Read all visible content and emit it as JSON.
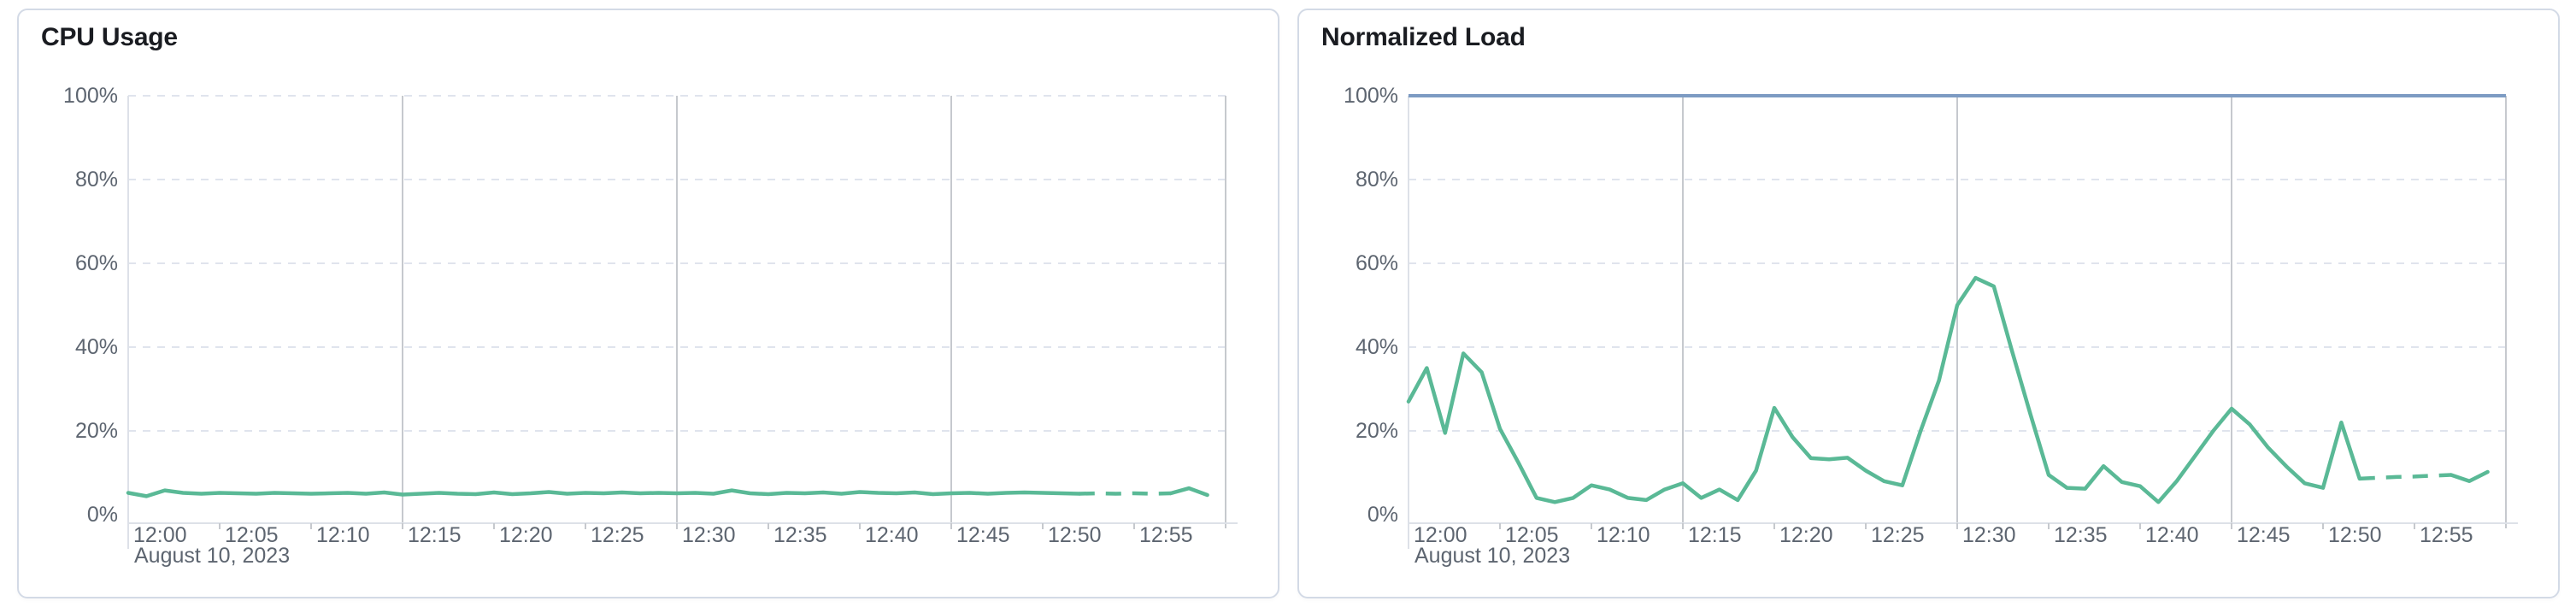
{
  "colors": {
    "series_green": "#5ab996",
    "limit_blue": "#7d9bc3",
    "h_gridline": "#e0e4ed",
    "v_gridline": "#c6c9ce",
    "axis_line": "#dde1e8",
    "tick_mark": "#c6c9ce",
    "axis_label": "#5d6570",
    "panel_border": "#d3dae6",
    "title_text": "#1a1c21"
  },
  "chart_data": [
    {
      "type": "line",
      "title": "CPU Usage",
      "date_label": "August 10, 2023",
      "x_tick_labels": [
        "12:00",
        "12:05",
        "12:10",
        "12:15",
        "12:20",
        "12:25",
        "12:30",
        "12:35",
        "12:40",
        "12:45",
        "12:50",
        "12:55"
      ],
      "x_domain": [
        "12:00",
        "13:00"
      ],
      "x_interval_minutes": 1,
      "y_tick_labels": [
        "0%",
        "20%",
        "40%",
        "60%",
        "80%",
        "100%"
      ],
      "ylim": [
        0,
        100
      ],
      "grid": {
        "horizontal": "dashed",
        "vertical_major_minutes": [
          15,
          30,
          45,
          60
        ],
        "legend": "none"
      },
      "series": [
        {
          "name": "cpu-usage",
          "color": "#5ab996",
          "unit": "%",
          "start_time": "12:00",
          "values": [
            5.2,
            4.4,
            5.8,
            5.2,
            5.0,
            5.2,
            5.1,
            5.0,
            5.2,
            5.1,
            5.0,
            5.1,
            5.2,
            5.0,
            5.3,
            4.8,
            5.0,
            5.2,
            5.0,
            4.9,
            5.3,
            4.9,
            5.1,
            5.4,
            5.0,
            5.2,
            5.1,
            5.3,
            5.1,
            5.2,
            5.1,
            5.2,
            5.0,
            5.8,
            5.1,
            4.9,
            5.2,
            5.1,
            5.3,
            5.0,
            5.4,
            5.2,
            5.1,
            5.3,
            4.9,
            5.1,
            5.2,
            5.0,
            5.2,
            5.3,
            5.2,
            5.1,
            5.0,
            5.1,
            5.0,
            5.1,
            5.0,
            5.1,
            6.3,
            4.7
          ],
          "dashed_segment": {
            "from_index": 52,
            "to_index": 57
          }
        }
      ]
    },
    {
      "type": "line",
      "title": "Normalized Load",
      "date_label": "August 10, 2023",
      "x_tick_labels": [
        "12:00",
        "12:05",
        "12:10",
        "12:15",
        "12:20",
        "12:25",
        "12:30",
        "12:35",
        "12:40",
        "12:45",
        "12:50",
        "12:55"
      ],
      "x_domain": [
        "12:00",
        "13:00"
      ],
      "x_interval_minutes": 1,
      "y_tick_labels": [
        "0%",
        "20%",
        "40%",
        "60%",
        "80%",
        "100%"
      ],
      "ylim": [
        0,
        100
      ],
      "grid": {
        "horizontal": "dashed",
        "vertical_major_minutes": [
          15,
          30,
          45,
          60
        ],
        "legend": "none"
      },
      "series": [
        {
          "name": "normalized-load",
          "color": "#5ab996",
          "unit": "%",
          "start_time": "12:00",
          "values": [
            27,
            35,
            19.5,
            38.5,
            34,
            20.5,
            12.5,
            4,
            3,
            4,
            7,
            6,
            4,
            3.5,
            6,
            7.5,
            4,
            6,
            3.5,
            10.5,
            25.5,
            18.5,
            13.5,
            13.2,
            13.6,
            10.5,
            8,
            7,
            20,
            32,
            50,
            56.5,
            54.5,
            39,
            24,
            9.5,
            6.4,
            6.2,
            11.6,
            7.8,
            6.8,
            3,
            8,
            14,
            20,
            25.3,
            21.5,
            16,
            11.5,
            7.5,
            6.4,
            22,
            8.6,
            8.8,
            9,
            9.1,
            9.3,
            9.5,
            8,
            10.2
          ],
          "dashed_segment": {
            "from_index": 52,
            "to_index": 57
          }
        },
        {
          "name": "load-limit",
          "color": "#7d9bc3",
          "unit": "%",
          "constant_value": 100
        }
      ]
    }
  ]
}
